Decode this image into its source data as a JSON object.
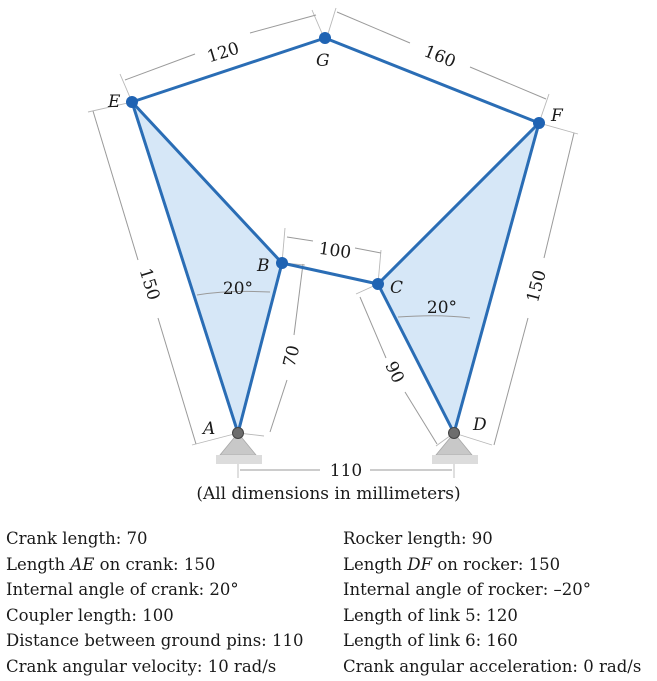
{
  "figure": {
    "point_labels": {
      "A": "A",
      "B": "B",
      "C": "C",
      "D": "D",
      "E": "E",
      "F": "F",
      "G": "G"
    },
    "dimensions": {
      "eg": "120",
      "gf": "160",
      "ae": "150",
      "df": "150",
      "bc": "100",
      "ab": "70",
      "cd": "90",
      "ad": "110",
      "angle_crank": "20°",
      "angle_rocker": "20°"
    },
    "colors": {
      "link": "#2a6db5",
      "joint": "#1f63b3",
      "plate": "#d6e7f7",
      "ground": "#c8c8c8"
    }
  },
  "caption": "(All dimensions in millimeters)",
  "parameters_left": [
    {
      "text": "Crank length: 70"
    },
    {
      "prefix": "Length ",
      "em": "AE",
      "suffix": " on crank: 150"
    },
    {
      "text": "Internal angle of crank: 20°"
    },
    {
      "text": "Coupler length: 100"
    },
    {
      "text": "Distance between ground pins: 110"
    },
    {
      "text": "Crank angular velocity: 10 rad/s"
    }
  ],
  "parameters_right": [
    {
      "text": "Rocker length: 90"
    },
    {
      "prefix": "Length ",
      "em": "DF",
      "suffix": " on rocker: 150"
    },
    {
      "text": "Internal angle of rocker: –20°"
    },
    {
      "text": "Length of link 5: 120"
    },
    {
      "text": "Length of link 6: 160"
    },
    {
      "text": "Crank angular acceleration: 0 rad/s"
    }
  ]
}
